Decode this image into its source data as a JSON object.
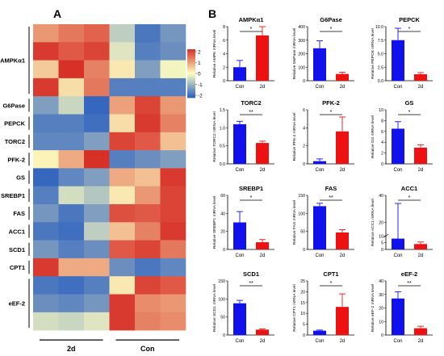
{
  "figure": {
    "panel_a_label": "A",
    "panel_b_label": "B"
  },
  "heatmap": {
    "rows": [
      {
        "label": "AMPKα1",
        "span": 4
      },
      {
        "label": "G6Pase",
        "span": 1
      },
      {
        "label": "PEPCK",
        "span": 1
      },
      {
        "label": "TORC2",
        "span": 1
      },
      {
        "label": "PFK-2",
        "span": 1
      },
      {
        "label": "GS",
        "span": 1
      },
      {
        "label": "SREBP1",
        "span": 1
      },
      {
        "label": "FAS",
        "span": 1
      },
      {
        "label": "ACC1",
        "span": 1
      },
      {
        "label": "SCD1",
        "span": 1
      },
      {
        "label": "CPT1",
        "span": 1
      },
      {
        "label": "eEF-2",
        "span": 3
      }
    ],
    "groups": [
      "2d",
      "Con"
    ],
    "colorbar_ticks": [
      "2",
      "1",
      "0",
      "-1",
      "-2"
    ],
    "colors": {
      "high": "#d73027",
      "mid": "#fdfdc0",
      "low": "#2c5fbf"
    }
  },
  "chart_data": {
    "type": "heatmap",
    "columns": [
      "2d",
      "2d",
      "2d",
      "Con",
      "Con",
      "Con"
    ],
    "row_labels": [
      "AMPKα1",
      "AMPKα1",
      "AMPKα1",
      "AMPKα1",
      "G6Pase",
      "PEPCK",
      "TORC2",
      "PFK-2",
      "GS",
      "SREBP1",
      "FAS",
      "ACC1",
      "SCD1",
      "CPT1",
      "eEF-2",
      "eEF-2",
      "eEF-2"
    ],
    "values": [
      [
        1.0,
        1.3,
        1.5,
        -0.6,
        -1.7,
        -1.3
      ],
      [
        1.9,
        1.6,
        1.8,
        -0.3,
        -1.6,
        -1.4
      ],
      [
        0.5,
        2.0,
        1.2,
        0.2,
        -1.2,
        -0.1
      ],
      [
        1.9,
        0.3,
        1.3,
        -1.6,
        -1.6,
        -1.6
      ],
      [
        -1.2,
        -0.5,
        -1.9,
        0.9,
        1.8,
        1.0
      ],
      [
        -1.6,
        -1.6,
        -1.8,
        0.3,
        1.9,
        1.2
      ],
      [
        -1.5,
        -1.5,
        -1.2,
        1.8,
        1.6,
        0.6
      ],
      [
        0.1,
        0.8,
        2.0,
        -1.6,
        -1.4,
        -1.2
      ],
      [
        -1.9,
        -1.5,
        -1.2,
        0.8,
        0.6,
        1.9
      ],
      [
        -1.6,
        -0.4,
        -0.7,
        0.2,
        1.0,
        1.8
      ],
      [
        -1.3,
        -1.7,
        -1.2,
        1.7,
        1.6,
        1.8
      ],
      [
        -1.7,
        -1.8,
        -0.6,
        0.6,
        1.2,
        1.9
      ],
      [
        -1.3,
        -1.6,
        -1.4,
        1.6,
        1.8,
        1.3
      ],
      [
        1.9,
        0.8,
        0.8,
        -1.4,
        -1.7,
        -1.5
      ],
      [
        -1.7,
        -1.8,
        -1.6,
        0.2,
        1.8,
        1.6
      ],
      [
        -1.4,
        -1.5,
        -1.3,
        1.9,
        1.1,
        1.0
      ],
      [
        -0.4,
        -0.5,
        -0.3,
        1.9,
        1.2,
        1.1
      ]
    ],
    "color_range": [
      -2,
      2
    ],
    "bar_panels": [
      {
        "title": "AMPKα1",
        "ylabel": "Relative AMPK mRNA level",
        "categories": [
          "Con",
          "2d"
        ],
        "values": [
          2.0,
          6.7
        ],
        "errors": [
          1.0,
          1.4
        ],
        "yticks": [
          0,
          2,
          4,
          6,
          8
        ],
        "ylim": [
          0,
          8
        ],
        "sig": "*"
      },
      {
        "title": "G6Pase",
        "ylabel": "Relative G6Pase mRNA level",
        "categories": [
          "Con",
          "2d"
        ],
        "values": [
          240,
          50
        ],
        "errors": [
          55,
          12
        ],
        "yticks": [
          0,
          100,
          200,
          300,
          400
        ],
        "ylim": [
          0,
          400
        ],
        "sig": "*"
      },
      {
        "title": "PEPCK",
        "ylabel": "Relative PEPCK mRNA level",
        "categories": [
          "Con",
          "2d"
        ],
        "values": [
          7.5,
          1.2
        ],
        "errors": [
          2.2,
          0.3
        ],
        "yticks": [
          0,
          2.5,
          5,
          7.5,
          10
        ],
        "ytick_labels": [
          "0.0",
          "2.5",
          "5.0",
          "7.5",
          "10.0"
        ],
        "ylim": [
          0,
          10
        ],
        "sig": "*"
      },
      {
        "title": "TORC2",
        "ylabel": "Relative TORC2 mRNA level",
        "categories": [
          "Con",
          "2d"
        ],
        "values": [
          1.1,
          0.58
        ],
        "errors": [
          0.08,
          0.05
        ],
        "yticks": [
          0,
          0.5,
          1.0,
          1.5
        ],
        "ytick_labels": [
          "0.0",
          "0.5",
          "1.0",
          "1.5"
        ],
        "ylim": [
          0,
          1.5
        ],
        "sig": "**"
      },
      {
        "title": "PFK-2",
        "ylabel": "Relative PFK-2 mRNA level",
        "categories": [
          "Con",
          "2d"
        ],
        "values": [
          0.3,
          3.6
        ],
        "errors": [
          0.25,
          1.6
        ],
        "yticks": [
          0,
          2,
          4,
          6
        ],
        "ylim": [
          0,
          6
        ],
        "sig": "*"
      },
      {
        "title": "GS",
        "ylabel": "Relative GS mRNA level",
        "categories": [
          "Con",
          "2d"
        ],
        "values": [
          6.5,
          3.0
        ],
        "errors": [
          1.3,
          0.5
        ],
        "yticks": [
          0,
          2,
          4,
          6,
          8,
          10
        ],
        "ylim": [
          0,
          10
        ],
        "sig": "*"
      },
      {
        "title": "SREBP1",
        "ylabel": "Relative SREBP1 mRNA level",
        "categories": [
          "Con",
          "2d"
        ],
        "values": [
          30,
          8
        ],
        "errors": [
          12,
          3
        ],
        "yticks": [
          0,
          20,
          40,
          60
        ],
        "ylim": [
          0,
          60
        ],
        "sig": "*"
      },
      {
        "title": "FAS",
        "ylabel": "Relative FAS mRNA level",
        "categories": [
          "Con",
          "2d"
        ],
        "values": [
          120,
          47
        ],
        "errors": [
          8,
          8
        ],
        "yticks": [
          0,
          50,
          100,
          150
        ],
        "ylim": [
          0,
          150
        ],
        "sig": "**"
      },
      {
        "title": "ACC1",
        "ylabel": "Relative ACC1 mRNA level",
        "categories": [
          "Con",
          "2d"
        ],
        "values": [
          8,
          4
        ],
        "errors": [
          26,
          1.5
        ],
        "yticks": [
          0,
          5,
          10,
          20,
          40
        ],
        "ylim": [
          0,
          40
        ],
        "sig": "*",
        "broken_axis": true
      },
      {
        "title": "SCD1",
        "ylabel": "Relative SCD1 mRNA level",
        "categories": [
          "Con",
          "2d"
        ],
        "values": [
          88,
          15
        ],
        "errors": [
          8,
          2
        ],
        "yticks": [
          0,
          50,
          100,
          150
        ],
        "ylim": [
          0,
          150
        ],
        "sig": "**"
      },
      {
        "title": "CPT1",
        "ylabel": "Relative CPT1 mRNA level",
        "categories": [
          "Con",
          "2d"
        ],
        "values": [
          2,
          13
        ],
        "errors": [
          0.3,
          6
        ],
        "yticks": [
          0,
          5,
          10,
          15,
          20,
          25
        ],
        "ylim": [
          0,
          25
        ],
        "sig": "*"
      },
      {
        "title": "eEF-2",
        "ylabel": "Relative eEF-2 mRNA level",
        "categories": [
          "Con",
          "2d"
        ],
        "values": [
          27,
          5
        ],
        "errors": [
          5,
          1.5
        ],
        "yticks": [
          0,
          10,
          20,
          30,
          40
        ],
        "ylim": [
          0,
          40
        ],
        "sig": "**"
      }
    ],
    "series_colors": {
      "Con": "#1111ee",
      "2d": "#ee1111"
    }
  }
}
